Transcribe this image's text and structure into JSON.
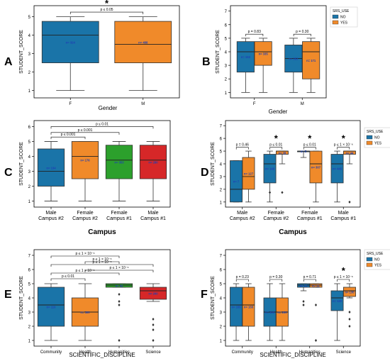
{
  "chart_data": [
    {
      "panel_label": "A",
      "type": "box",
      "ylabel": "STUDENT_SCORE",
      "xlabel": "Gender",
      "categories": [
        "F",
        "M"
      ],
      "ylim": [
        0.6,
        5.6
      ],
      "yticks": [
        1,
        2,
        3,
        4,
        5
      ],
      "dodge": false,
      "series": [
        {
          "name": "",
          "color": "#1a74a8",
          "boxes": [
            {
              "min": 1,
              "q1": 2.5,
              "median": 4,
              "q3": 4.75,
              "max": 5,
              "n": "n= 324"
            },
            {
              "min": 1,
              "q1": 2.5,
              "median": 3.5,
              "q3": 4.75,
              "max": 5,
              "n": "n= 488",
              "color": "#f08a2a"
            }
          ]
        }
      ],
      "brackets": [
        {
          "from": 0,
          "to": 1,
          "y": 5.25,
          "label": "p ≤ 0.05",
          "star": "*"
        }
      ],
      "legend": null
    },
    {
      "panel_label": "B",
      "type": "box",
      "ylabel": "STUDENT_SCORE",
      "xlabel": "Gender",
      "categories": [
        "F",
        "M"
      ],
      "ylim": [
        0.6,
        7.4
      ],
      "yticks": [
        1,
        2,
        3,
        4,
        5,
        6,
        7
      ],
      "dodge": true,
      "series": [
        {
          "name": "NO",
          "color": "#1a74a8",
          "boxes": [
            {
              "min": 1,
              "q1": 2.5,
              "median": 4,
              "q3": 4.75,
              "max": 5,
              "n": "n= 153"
            },
            {
              "min": 1,
              "q1": 2.5,
              "median": 3.5,
              "q3": 4.5,
              "max": 5,
              "n": "n= 353"
            }
          ]
        },
        {
          "name": "YES",
          "color": "#f08a2a",
          "boxes": [
            {
              "min": 1,
              "q1": 3,
              "median": 4,
              "q3": 4.75,
              "max": 5,
              "n": "n= 335"
            },
            {
              "min": 1,
              "q1": 2,
              "median": 4,
              "q3": 4.75,
              "max": 5,
              "n": "n= 171"
            }
          ]
        }
      ],
      "brackets": [
        {
          "cat": 0,
          "y": 5.3,
          "label": "p = 0.83"
        },
        {
          "cat": 1,
          "y": 5.3,
          "label": "p = 0.30"
        }
      ],
      "legend": {
        "title": "SRS_USE",
        "position": "top-right"
      }
    },
    {
      "panel_label": "C",
      "type": "box",
      "ylabel": "STUDENT_SCORE",
      "xlabel": "Campus",
      "categories": [
        "Male\nCampus #2",
        "Female\nCampus #2",
        "Female\nCampus #1",
        "Male\nCampus #1"
      ],
      "ylim": [
        0.6,
        6.4
      ],
      "yticks": [
        1,
        2,
        3,
        4,
        5,
        6
      ],
      "dodge": false,
      "series": [
        {
          "name": "",
          "color": "#1a74a8",
          "boxes": [
            {
              "min": 1,
              "q1": 2,
              "median": 3,
              "q3": 4.5,
              "max": 5,
              "n": "n= 134"
            },
            {
              "min": 1,
              "q1": 2.5,
              "median": 4,
              "q3": 5,
              "max": 5,
              "n": "n= 176",
              "color": "#f08a2a"
            },
            {
              "min": 1,
              "q1": 2.5,
              "median": 3.75,
              "q3": 4.75,
              "max": 5,
              "n": "n= 353",
              "color": "#2ca02c"
            },
            {
              "min": 1,
              "q1": 2.5,
              "median": 3.75,
              "q3": 4.75,
              "max": 5,
              "n": "n= 280",
              "color": "#d62728"
            }
          ]
        }
      ],
      "brackets": [
        {
          "from": 0,
          "to": 1,
          "y": 5.3,
          "label": "p ≤ 0.001"
        },
        {
          "from": 0,
          "to": 2,
          "y": 5.6,
          "label": "p ≤ 0.001"
        },
        {
          "from": 0,
          "to": 3,
          "y": 6.0,
          "label": "p ≤ 0.01"
        }
      ],
      "legend": null
    },
    {
      "panel_label": "D",
      "type": "box",
      "ylabel": "STUDENT_SCORE",
      "xlabel": "Campus",
      "categories": [
        "Male\nCampus #2",
        "Female\nCampus #2",
        "Female\nCampus #1",
        "Male\nCampus #1"
      ],
      "ylim": [
        0.6,
        7.4
      ],
      "yticks": [
        1,
        2,
        3,
        4,
        5,
        6,
        7
      ],
      "dodge": true,
      "series": [
        {
          "name": "NO",
          "color": "#1a74a8",
          "boxes": [
            {
              "min": 1,
              "q1": 1,
              "median": 2,
              "q3": 4.25,
              "max": 4.25,
              "n": "n= 7"
            },
            {
              "min": 1,
              "q1": 2.5,
              "median": 4,
              "q3": 4.75,
              "max": 5,
              "n": "n= 148",
              "outliers": [
                1.75
              ]
            },
            {
              "min": 4.5,
              "q1": 5,
              "median": 5,
              "q3": 5,
              "max": 5,
              "n": "n= 5"
            },
            {
              "min": 1,
              "q1": 2.5,
              "median": 4,
              "q3": 4.75,
              "max": 5,
              "n": "n= 445"
            }
          ]
        },
        {
          "name": "YES",
          "color": "#f08a2a",
          "boxes": [
            {
              "min": 1,
              "q1": 2,
              "median": 3,
              "q3": 4.5,
              "max": 5,
              "n": "n= 127"
            },
            {
              "min": 4,
              "q1": 4.75,
              "median": 5,
              "q3": 5,
              "max": 5,
              "n": "n= 28",
              "outliers": [
                1.75
              ]
            },
            {
              "min": 1,
              "q1": 2.5,
              "median": 4,
              "q3": 5,
              "max": 5,
              "n": "n= 307"
            },
            {
              "min": 4,
              "q1": 4.75,
              "median": 5,
              "q3": 5,
              "max": 5,
              "n": "n= 44",
              "outliers": [
                1
              ]
            }
          ]
        }
      ],
      "brackets": [
        {
          "cat": 0,
          "y": 5.3,
          "label": "p = 0.46"
        },
        {
          "cat": 1,
          "y": 5.3,
          "label": "p ≤ 0.01",
          "star": "*"
        },
        {
          "cat": 2,
          "y": 5.3,
          "label": "p ≤ 0.01",
          "star": "*"
        },
        {
          "cat": 3,
          "y": 5.3,
          "label": "p ≤ 1 × 10⁻⁶",
          "star": "*"
        }
      ],
      "legend": {
        "title": "SRS_USE",
        "position": "top-right"
      }
    },
    {
      "panel_label": "E",
      "type": "box",
      "ylabel": "STUDENT_SCORE",
      "xlabel": "SCIENTIFIC_DISCIPLINE",
      "categories": [
        "Community",
        "Health",
        "Humanities",
        "Science"
      ],
      "ylim": [
        0.6,
        7.4
      ],
      "yticks": [
        1,
        2,
        3,
        4,
        5,
        6,
        7
      ],
      "dodge": false,
      "series": [
        {
          "name": "",
          "color": "#1a74a8",
          "boxes": [
            {
              "min": 1,
              "q1": 2,
              "median": 3.5,
              "q3": 4.75,
              "max": 5,
              "n": "n= 110"
            },
            {
              "min": 1,
              "q1": 2,
              "median": 3,
              "q3": 4,
              "max": 5,
              "n": "n= 300",
              "color": "#f08a2a"
            },
            {
              "min": 4.75,
              "q1": 4.75,
              "median": 4.9,
              "q3": 5,
              "max": 5,
              "n": "n= 42",
              "color": "#2ca02c",
              "outliers": [
                4.25,
                3.75,
                3.5,
                1
              ]
            },
            {
              "min": 3.75,
              "q1": 3.9,
              "median": 4.5,
              "q3": 4.75,
              "max": 5,
              "n": "n= 260",
              "color": "#d62728",
              "outliers": [
                2.5,
                2.1,
                1.75,
                1
              ]
            }
          ]
        }
      ],
      "brackets": [
        {
          "from": 0,
          "to": 1,
          "y": 5.35,
          "label": "p ≤ 0.01"
        },
        {
          "from": 0,
          "to": 2,
          "y": 5.75,
          "label": "p ≤ 1 × 10⁻⁶"
        },
        {
          "from": 1,
          "to": 3,
          "y": 5.95,
          "label": "p ≤ 1 × 10⁻⁶"
        },
        {
          "from": 0,
          "to": 3,
          "y": 6.35,
          "label": "p ≤ 1 × 10⁻⁶"
        },
        {
          "from": 1,
          "to": 2,
          "y": 6.55,
          "label": "p ≤ 1 × 10⁻⁶"
        },
        {
          "from": 0,
          "to": 2,
          "y": 6.95,
          "label": "p ≤ 1 × 10⁻⁶"
        }
      ],
      "legend": null
    },
    {
      "panel_label": "F",
      "type": "box",
      "ylabel": "STUDENT_SCORE",
      "xlabel": "SCIENTIFIC_DISCIPLINE",
      "categories": [
        "Community",
        "Health",
        "Humanities",
        "Science"
      ],
      "ylim": [
        0.6,
        7.4
      ],
      "yticks": [
        1,
        2,
        3,
        4,
        5,
        6,
        7
      ],
      "dodge": true,
      "series": [
        {
          "name": "NO",
          "color": "#1a74a8",
          "boxes": [
            {
              "min": 1,
              "q1": 2,
              "median": 3.5,
              "q3": 4.75,
              "max": 5,
              "n": "n= 155"
            },
            {
              "min": 1,
              "q1": 2,
              "median": 3,
              "q3": 4,
              "max": 5,
              "n": "n= 300"
            },
            {
              "min": 4.5,
              "q1": 4.75,
              "median": 4.9,
              "q3": 5,
              "max": 5,
              "n": "n= 21",
              "outliers": [
                3.75,
                3.5
              ]
            },
            {
              "min": 1,
              "q1": 3.1,
              "median": 4,
              "q3": 4.5,
              "max": 5,
              "n": "n= 130"
            }
          ]
        },
        {
          "name": "YES",
          "color": "#f08a2a",
          "boxes": [
            {
              "min": 1,
              "q1": 2,
              "median": 3.5,
              "q3": 4.75,
              "max": 5,
              "n": "n= 155"
            },
            {
              "min": 1,
              "q1": 2,
              "median": 3,
              "q3": 4,
              "max": 5,
              "n": "n= 200"
            },
            {
              "min": 4.75,
              "q1": 4.75,
              "median": 4.9,
              "q3": 5,
              "max": 5,
              "n": "n= 21",
              "outliers": [
                3.5,
                1
              ]
            },
            {
              "min": 4,
              "q1": 4.1,
              "median": 4.5,
              "q3": 4.75,
              "max": 5,
              "n": "n= 130",
              "outliers": [
                3,
                2.5,
                2
              ]
            }
          ]
        }
      ],
      "brackets": [
        {
          "cat": 0,
          "y": 5.3,
          "label": "p = 0.23"
        },
        {
          "cat": 1,
          "y": 5.3,
          "label": "p = 0.30"
        },
        {
          "cat": 2,
          "y": 5.3,
          "label": "p = 0.71"
        },
        {
          "cat": 3,
          "y": 5.3,
          "label": "p ≤ 1 × 10⁻⁶",
          "star": "*"
        }
      ],
      "legend": {
        "title": "SRS_USE",
        "position": "top-right"
      }
    }
  ]
}
